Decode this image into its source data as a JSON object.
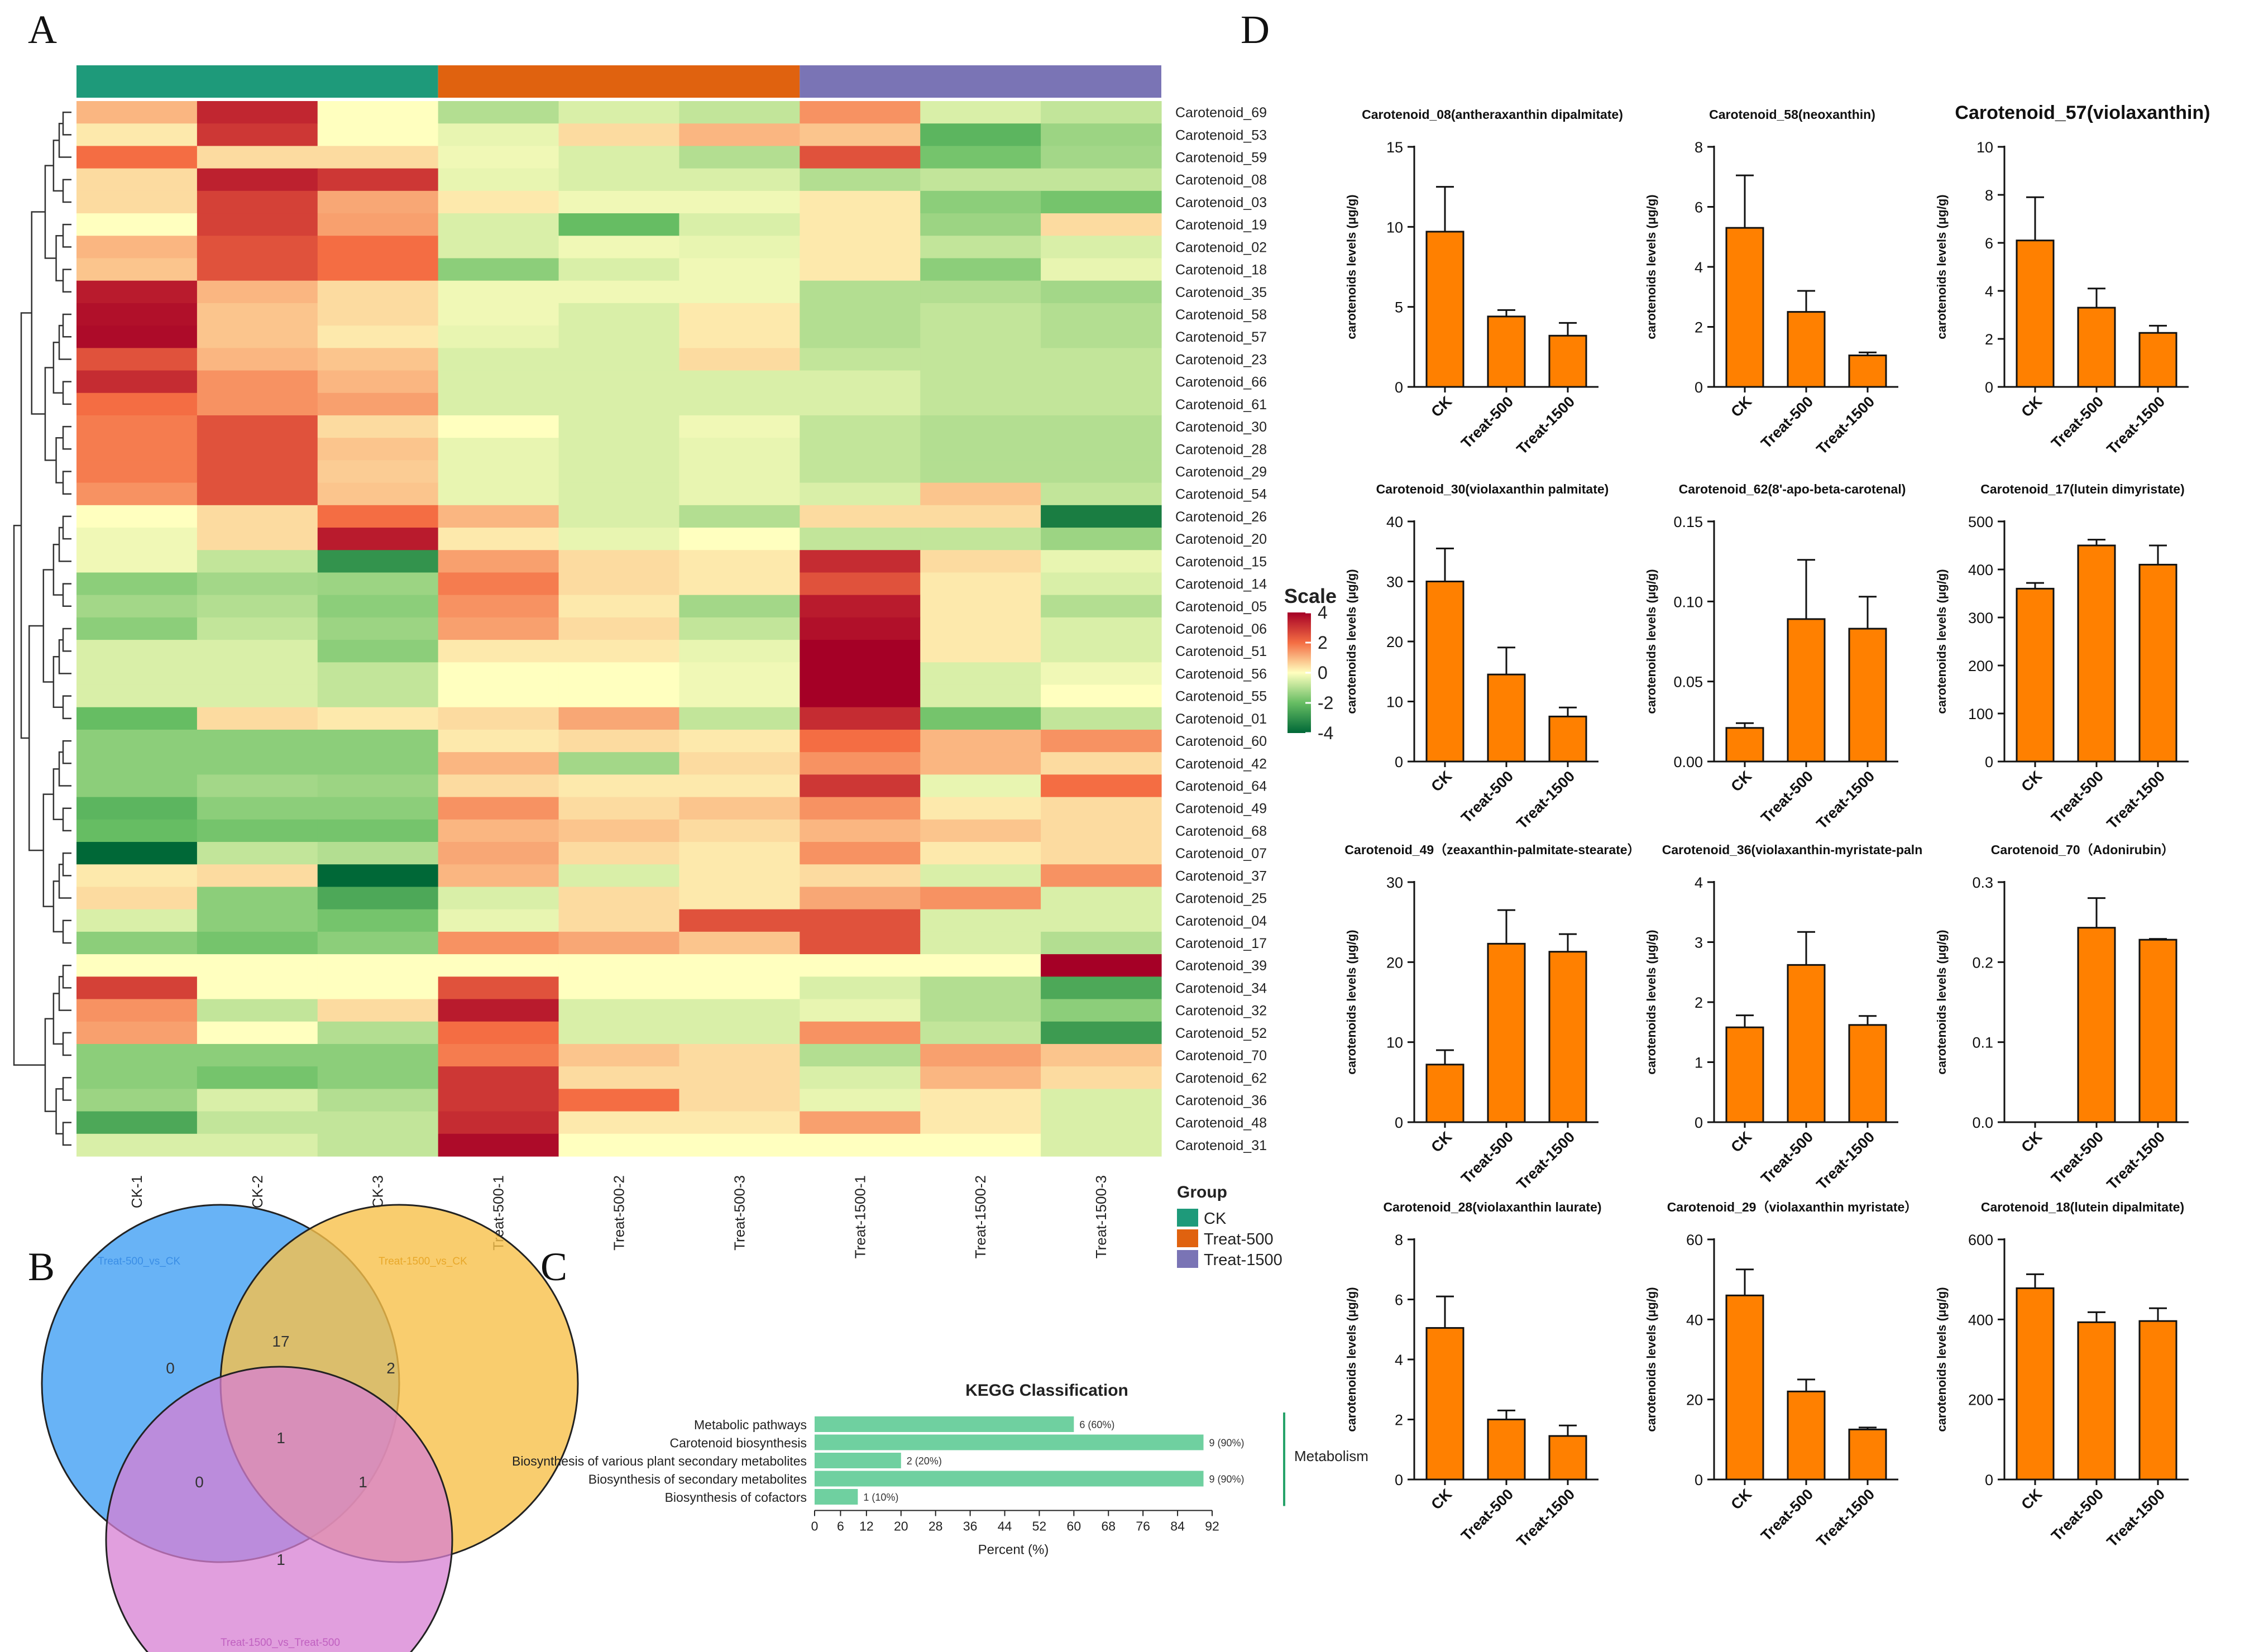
{
  "figure": {
    "panel_letters": [
      "A",
      "B",
      "C",
      "D"
    ],
    "colors": {
      "ck": "#1e9a7a",
      "treat500": "#e0620f",
      "treat1500": "#7a74b5",
      "bar": "#ff8000",
      "kegg_bar": "#6fd0a0",
      "venn_a": "#4da6f5",
      "venn_b": "#f8c14a",
      "venn_c": "#d77fd3"
    }
  },
  "chart_data": [
    {
      "panel": "A",
      "type": "heatmap",
      "columns": [
        "CK-1",
        "CK-2",
        "CK-3",
        "Treat-500-1",
        "Treat-500-2",
        "Treat-500-3",
        "Treat-1500-1",
        "Treat-1500-2",
        "Treat-1500-3"
      ],
      "column_groups": [
        "CK",
        "CK",
        "CK",
        "Treat-500",
        "Treat-500",
        "Treat-500",
        "Treat-1500",
        "Treat-1500",
        "Treat-1500"
      ],
      "rows": [
        "Carotenoid_69",
        "Carotenoid_53",
        "Carotenoid_59",
        "Carotenoid_08",
        "Carotenoid_03",
        "Carotenoid_19",
        "Carotenoid_02",
        "Carotenoid_18",
        "Carotenoid_35",
        "Carotenoid_58",
        "Carotenoid_57",
        "Carotenoid_23",
        "Carotenoid_66",
        "Carotenoid_61",
        "Carotenoid_30",
        "Carotenoid_28",
        "Carotenoid_29",
        "Carotenoid_54",
        "Carotenoid_26",
        "Carotenoid_20",
        "Carotenoid_15",
        "Carotenoid_14",
        "Carotenoid_05",
        "Carotenoid_06",
        "Carotenoid_51",
        "Carotenoid_56",
        "Carotenoid_55",
        "Carotenoid_01",
        "Carotenoid_60",
        "Carotenoid_42",
        "Carotenoid_64",
        "Carotenoid_49",
        "Carotenoid_68",
        "Carotenoid_07",
        "Carotenoid_37",
        "Carotenoid_25",
        "Carotenoid_04",
        "Carotenoid_17",
        "Carotenoid_39",
        "Carotenoid_34",
        "Carotenoid_32",
        "Carotenoid_52",
        "Carotenoid_70",
        "Carotenoid_62",
        "Carotenoid_36",
        "Carotenoid_48",
        "Carotenoid_31"
      ],
      "values": [
        [
          1.0,
          3.3,
          0.0,
          -1.0,
          -0.5,
          -0.8,
          1.5,
          -0.5,
          -0.8
        ],
        [
          0.3,
          3.0,
          0.0,
          -0.3,
          0.5,
          1.0,
          0.8,
          -2.2,
          -1.3
        ],
        [
          2.0,
          0.5,
          0.5,
          -0.2,
          -0.5,
          -1.0,
          2.5,
          -1.8,
          -1.2
        ],
        [
          0.5,
          3.4,
          3.0,
          -0.3,
          -0.5,
          -0.5,
          -1.0,
          -0.8,
          -0.8
        ],
        [
          0.5,
          2.8,
          1.2,
          0.3,
          -0.2,
          -0.2,
          0.3,
          -1.5,
          -1.8
        ],
        [
          0.0,
          2.8,
          1.3,
          -0.5,
          -2.0,
          -0.5,
          0.3,
          -1.3,
          0.5
        ],
        [
          1.0,
          2.5,
          2.0,
          -0.5,
          -0.2,
          -0.3,
          0.3,
          -0.8,
          -0.5
        ],
        [
          0.8,
          2.5,
          2.0,
          -1.5,
          -0.5,
          -0.2,
          0.3,
          -1.5,
          -0.3
        ],
        [
          3.5,
          1.0,
          0.5,
          -0.2,
          -0.2,
          -0.2,
          -1.0,
          -1.0,
          -1.2
        ],
        [
          3.7,
          0.8,
          0.5,
          -0.2,
          -0.5,
          0.3,
          -1.0,
          -0.8,
          -1.0
        ],
        [
          3.8,
          0.8,
          0.3,
          -0.3,
          -0.5,
          0.3,
          -1.0,
          -0.8,
          -1.0
        ],
        [
          2.5,
          1.0,
          0.8,
          -0.5,
          -0.5,
          0.5,
          -0.8,
          -0.8,
          -0.8
        ],
        [
          3.2,
          1.5,
          1.0,
          -0.5,
          -0.5,
          -0.5,
          -0.5,
          -0.8,
          -0.8
        ],
        [
          2.0,
          1.5,
          1.3,
          -0.5,
          -0.5,
          -0.5,
          -0.5,
          -0.8,
          -0.8
        ],
        [
          1.8,
          2.5,
          0.5,
          0.0,
          -0.5,
          -0.2,
          -0.8,
          -1.0,
          -1.0
        ],
        [
          1.8,
          2.5,
          0.8,
          -0.3,
          -0.5,
          -0.3,
          -0.8,
          -1.0,
          -1.0
        ],
        [
          1.8,
          2.5,
          0.7,
          -0.3,
          -0.5,
          -0.3,
          -0.8,
          -1.0,
          -1.0
        ],
        [
          1.5,
          2.5,
          0.8,
          -0.3,
          -0.5,
          -0.3,
          -0.5,
          0.8,
          -0.8
        ],
        [
          0.0,
          0.5,
          2.0,
          1.0,
          -0.5,
          -1.0,
          0.5,
          0.5,
          -3.5
        ],
        [
          -0.2,
          0.5,
          3.5,
          0.3,
          -0.3,
          0.0,
          -0.8,
          -0.8,
          -1.3
        ],
        [
          -0.2,
          -0.8,
          -3.0,
          1.3,
          0.5,
          0.3,
          3.2,
          0.5,
          -0.3
        ],
        [
          -1.5,
          -1.2,
          -1.3,
          1.8,
          0.5,
          0.3,
          2.5,
          0.3,
          -0.5
        ],
        [
          -1.2,
          -1.0,
          -1.5,
          1.5,
          0.3,
          -1.2,
          3.5,
          0.3,
          -1.0
        ],
        [
          -1.5,
          -0.8,
          -1.3,
          1.3,
          0.5,
          -0.8,
          3.7,
          0.3,
          -0.5
        ],
        [
          -0.5,
          -0.5,
          -1.5,
          0.3,
          0.3,
          -0.3,
          4.0,
          0.3,
          -0.5
        ],
        [
          -0.5,
          -0.5,
          -0.8,
          0.0,
          0.0,
          -0.2,
          4.3,
          -0.5,
          -0.2
        ],
        [
          -0.5,
          -0.5,
          -0.8,
          0.0,
          0.0,
          -0.2,
          4.3,
          -0.5,
          0.0
        ],
        [
          -2.0,
          0.5,
          0.3,
          0.5,
          1.2,
          -0.8,
          3.2,
          -1.8,
          -0.8
        ],
        [
          -1.5,
          -1.5,
          -1.5,
          0.3,
          0.5,
          0.3,
          2.0,
          1.0,
          1.5
        ],
        [
          -1.5,
          -1.5,
          -1.5,
          1.0,
          -1.2,
          0.5,
          1.5,
          1.0,
          0.5
        ],
        [
          -1.5,
          -1.2,
          -1.3,
          0.5,
          0.3,
          0.3,
          3.0,
          -0.3,
          2.0
        ],
        [
          -2.2,
          -1.5,
          -1.5,
          1.5,
          0.5,
          0.8,
          1.5,
          0.3,
          0.5
        ],
        [
          -2.0,
          -1.8,
          -1.8,
          1.0,
          0.8,
          0.5,
          1.0,
          0.8,
          0.5
        ],
        [
          -4.0,
          -0.8,
          -1.0,
          1.2,
          0.5,
          0.3,
          1.5,
          0.3,
          0.5
        ],
        [
          0.3,
          0.5,
          -4.0,
          1.0,
          -0.5,
          0.3,
          0.5,
          -0.5,
          1.5
        ],
        [
          0.5,
          -1.5,
          -2.5,
          -0.5,
          0.5,
          0.3,
          1.2,
          1.5,
          -0.5
        ],
        [
          -0.5,
          -1.5,
          -1.8,
          -0.3,
          0.5,
          2.5,
          2.5,
          -0.5,
          -0.5
        ],
        [
          -1.5,
          -1.8,
          -1.5,
          1.5,
          1.2,
          0.8,
          2.5,
          -0.5,
          -1.0
        ],
        [
          0.0,
          0.0,
          0.0,
          0.0,
          0.0,
          0.0,
          0.0,
          0.0,
          4.3
        ],
        [
          2.8,
          0.0,
          0.0,
          2.5,
          0.0,
          0.0,
          -0.5,
          -1.0,
          -2.5
        ],
        [
          1.5,
          -0.8,
          0.5,
          3.5,
          -0.5,
          -0.5,
          -0.3,
          -1.0,
          -1.5
        ],
        [
          1.3,
          0.0,
          -1.0,
          2.0,
          -0.5,
          -0.5,
          1.5,
          -0.8,
          -2.8
        ],
        [
          -1.5,
          -1.5,
          -1.5,
          1.8,
          0.8,
          0.5,
          -1.0,
          1.3,
          0.8
        ],
        [
          -1.5,
          -1.8,
          -1.5,
          3.0,
          0.5,
          0.5,
          -0.5,
          1.0,
          0.5
        ],
        [
          -1.3,
          -0.5,
          -1.0,
          3.0,
          2.0,
          0.5,
          -0.3,
          0.3,
          -0.5
        ],
        [
          -2.5,
          -0.8,
          -0.8,
          3.2,
          0.3,
          0.3,
          1.3,
          0.3,
          -0.5
        ],
        [
          -0.5,
          -0.5,
          -0.8,
          3.8,
          0.0,
          0.0,
          0.0,
          0.0,
          -0.5
        ]
      ],
      "scale_title": "Scale",
      "scale_ticks": [
        "4",
        "2",
        "0",
        "-2",
        "-4"
      ],
      "scale_range": [
        -4,
        4
      ],
      "legend_title": "Group",
      "legend_items": [
        "CK",
        "Treat-500",
        "Treat-1500"
      ]
    },
    {
      "panel": "B",
      "type": "venn",
      "sets": [
        "Treat-500_vs_CK",
        "Treat-1500_vs_CK",
        "Treat-1500_vs_Treat-500"
      ],
      "regions": {
        "a_only": "0",
        "ab": "17",
        "b_only": "2",
        "abc": "1",
        "ac": "0",
        "bc": "1",
        "c_only": "1"
      }
    },
    {
      "panel": "C",
      "type": "bar",
      "orientation": "horizontal",
      "title": "KEGG Classification",
      "categories": [
        "Metabolic pathways",
        "Carotenoid biosynthesis",
        "Biosynthesis of various plant secondary metabolites",
        "Biosynthesis of secondary metabolites",
        "Biosynthesis of cofactors"
      ],
      "values": [
        60,
        90,
        20,
        90,
        10
      ],
      "value_labels": [
        "6 (60%)",
        "9 (90%)",
        "2 (20%)",
        "9 (90%)",
        "1 (10%)"
      ],
      "xlabel": "Percent (%)",
      "xticks": [
        "0",
        "6",
        "12",
        "20",
        "28",
        "36",
        "44",
        "52",
        "60",
        "68",
        "76",
        "84",
        "92"
      ],
      "xlim": [
        0,
        92
      ],
      "group_label": "Metabolism"
    },
    {
      "panel": "D",
      "type": "bar",
      "ylabel": "carotenoids levels (μg/g)",
      "categories": [
        "CK",
        "Treat-500",
        "Treat-1500"
      ],
      "subplots": [
        {
          "title": "Carotenoid_08(antheraxanthin dipalmitate)",
          "values": [
            9.7,
            4.4,
            3.2
          ],
          "errors": [
            2.8,
            0.4,
            0.8
          ],
          "ylim": [
            0,
            15
          ],
          "yticks": [
            "0",
            "5",
            "10",
            "15"
          ]
        },
        {
          "title": "Carotenoid_58(neoxanthin)",
          "values": [
            5.3,
            2.5,
            1.05
          ],
          "errors": [
            1.75,
            0.7,
            0.1
          ],
          "ylim": [
            0,
            8
          ],
          "yticks": [
            "0",
            "2",
            "4",
            "6",
            "8"
          ]
        },
        {
          "title": "Carotenoid_57(violaxanthin)",
          "values": [
            6.1,
            3.3,
            2.25
          ],
          "errors": [
            1.8,
            0.8,
            0.3
          ],
          "ylim": [
            0,
            10
          ],
          "yticks": [
            "0",
            "2",
            "4",
            "6",
            "8",
            "10"
          ]
        },
        {
          "title": "Carotenoid_30(violaxanthin palmitate)",
          "values": [
            30,
            14.5,
            7.5
          ],
          "errors": [
            5.5,
            4.5,
            1.5
          ],
          "ylim": [
            0,
            40
          ],
          "yticks": [
            "0",
            "10",
            "20",
            "30",
            "40"
          ]
        },
        {
          "title": "Carotenoid_62(8'-apo-beta-carotenal)",
          "values": [
            0.021,
            0.089,
            0.083
          ],
          "errors": [
            0.003,
            0.037,
            0.02
          ],
          "ylim": [
            0,
            0.15
          ],
          "yticks": [
            "0.00",
            "0.05",
            "0.10",
            "0.15"
          ]
        },
        {
          "title": "Carotenoid_17(lutein dimyristate)",
          "values": [
            360,
            450,
            410
          ],
          "errors": [
            12,
            12,
            40
          ],
          "ylim": [
            0,
            500
          ],
          "yticks": [
            "0",
            "100",
            "200",
            "300",
            "400",
            "500"
          ]
        },
        {
          "title": "Carotenoid_49（zeaxanthin-palmitate-stearate）",
          "values": [
            7.2,
            22.3,
            21.3
          ],
          "errors": [
            1.8,
            4.2,
            2.2
          ],
          "ylim": [
            0,
            30
          ],
          "yticks": [
            "0",
            "10",
            "20",
            "30"
          ]
        },
        {
          "title": "Carotenoid_36(violaxanthin-myristate-paln",
          "values": [
            1.58,
            2.62,
            1.62
          ],
          "errors": [
            0.2,
            0.55,
            0.15
          ],
          "ylim": [
            0,
            4
          ],
          "yticks": [
            "0",
            "1",
            "2",
            "3",
            "4"
          ]
        },
        {
          "title": "Carotenoid_70（Adonirubin）",
          "values": [
            0,
            0.243,
            0.228
          ],
          "errors": [
            0,
            0.037,
            0.001
          ],
          "ylim": [
            0,
            0.3
          ],
          "yticks": [
            "0.0",
            "0.1",
            "0.2",
            "0.3"
          ]
        },
        {
          "title": "Carotenoid_28(violaxanthin laurate)",
          "values": [
            5.05,
            2.0,
            1.45
          ],
          "errors": [
            1.05,
            0.3,
            0.35
          ],
          "ylim": [
            0,
            8
          ],
          "yticks": [
            "0",
            "2",
            "4",
            "6",
            "8"
          ]
        },
        {
          "title": "Carotenoid_29（violaxanthin myristate）",
          "values": [
            46,
            22,
            12.5
          ],
          "errors": [
            6.5,
            3,
            0.5
          ],
          "ylim": [
            0,
            60
          ],
          "yticks": [
            "0",
            "20",
            "40",
            "60"
          ]
        },
        {
          "title": "Carotenoid_18(lutein dipalmitate)",
          "values": [
            478,
            393,
            396
          ],
          "errors": [
            35,
            25,
            32
          ],
          "ylim": [
            0,
            600
          ],
          "yticks": [
            "0",
            "200",
            "400",
            "600"
          ]
        }
      ]
    }
  ]
}
